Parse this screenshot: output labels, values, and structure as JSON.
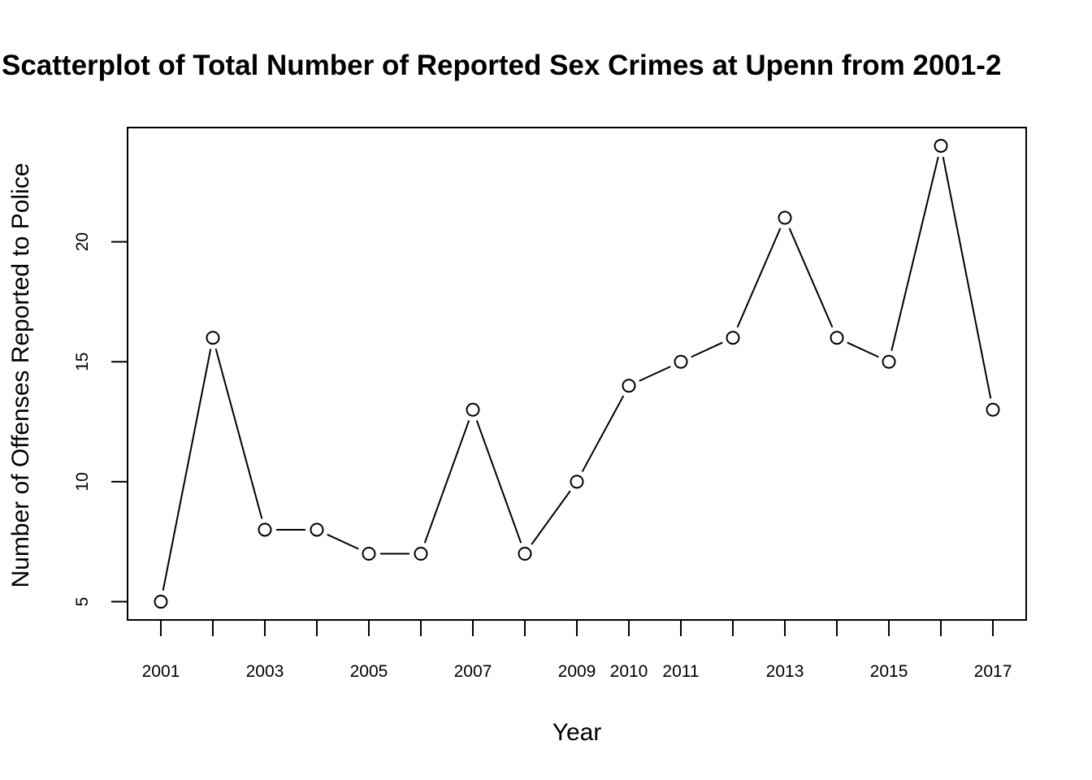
{
  "chart_data": {
    "type": "line",
    "title": "Scatterplot of Total Number of Reported Sex Crimes at Upenn from 2001-2",
    "xlabel": "Year",
    "ylabel": "Number of Offenses Reported to Police",
    "x": [
      2001,
      2002,
      2003,
      2004,
      2005,
      2006,
      2007,
      2008,
      2009,
      2010,
      2011,
      2012,
      2013,
      2014,
      2015,
      2016,
      2017
    ],
    "series": [
      {
        "values": [
          5,
          16,
          8,
          8,
          7,
          7,
          13,
          7,
          10,
          14,
          15,
          16,
          21,
          16,
          15,
          24,
          13
        ]
      }
    ],
    "x_tick_labels": [
      "2001",
      "2003",
      "2005",
      "2007",
      "2009",
      "2010",
      "2011",
      "2013",
      "2015",
      "2017"
    ],
    "y_ticks": [
      5,
      10,
      15,
      20
    ],
    "xlim": [
      2000.36,
      2017.64
    ],
    "ylim": [
      4.24,
      24.76
    ],
    "markers": "open-circle",
    "grid": false,
    "legend": "none",
    "colors": {
      "line": "#000000",
      "marker_fill": "#ffffff",
      "background": "#ffffff"
    }
  }
}
